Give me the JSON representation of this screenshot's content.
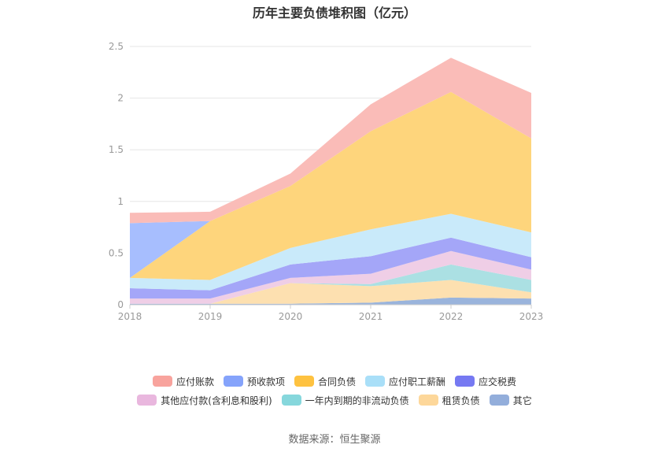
{
  "chart_data": {
    "type": "area",
    "title": "历年主要负债堆积图（亿元）",
    "x": [
      "2018",
      "2019",
      "2020",
      "2021",
      "2022",
      "2023"
    ],
    "ylim": [
      0,
      2.5
    ],
    "yticks": [
      "0",
      "0.5",
      "1",
      "1.5",
      "2",
      "2.5"
    ],
    "grid": true,
    "legend_position": "bottom",
    "stacked": true,
    "series": [
      {
        "name": "其它",
        "color": "#9ab4dc",
        "values": [
          0.01,
          0.01,
          0.01,
          0.02,
          0.07,
          0.06
        ]
      },
      {
        "name": "租赁负债",
        "color": "#fde0b0",
        "values": [
          0,
          0,
          0.2,
          0.16,
          0.17,
          0.06
        ]
      },
      {
        "name": "一年内到期的非流动负债",
        "color": "#abe0e3",
        "values": [
          0,
          0,
          0,
          0.02,
          0.15,
          0.12
        ]
      },
      {
        "name": "其他应付款(含利息和股利)",
        "color": "#efcee6",
        "values": [
          0.05,
          0.05,
          0.05,
          0.1,
          0.13,
          0.1
        ]
      },
      {
        "name": "应交税费",
        "color": "#a4a6f8",
        "values": [
          0.1,
          0.08,
          0.13,
          0.17,
          0.13,
          0.12
        ]
      },
      {
        "name": "应付职工薪酬",
        "color": "#c9eafa",
        "values": [
          0.1,
          0.1,
          0.16,
          0.26,
          0.23,
          0.24
        ]
      },
      {
        "name": "合同负债",
        "color": "#fed57c",
        "values": [
          0,
          0.57,
          0.6,
          0.95,
          1.18,
          0.91
        ]
      },
      {
        "name": "预收款项",
        "color": "#a7befe",
        "values": [
          0.53,
          0,
          0,
          0,
          0,
          0
        ]
      },
      {
        "name": "应付账款",
        "color": "#fabcb8",
        "values": [
          0.1,
          0.09,
          0.12,
          0.26,
          0.33,
          0.44
        ]
      }
    ]
  },
  "legend": {
    "row1": [
      {
        "label": "应付账款",
        "color": "#f8a39d"
      },
      {
        "label": "预收款项",
        "color": "#85a3fb"
      },
      {
        "label": "合同负债",
        "color": "#fec240"
      },
      {
        "label": "应付职工薪酬",
        "color": "#a9dff8"
      },
      {
        "label": "应交税费",
        "color": "#7679f2"
      }
    ],
    "row2": [
      {
        "label": "其他应付款(含利息和股利)",
        "color": "#e9b7de"
      },
      {
        "label": "一年内到期的非流动负债",
        "color": "#86d7dc"
      },
      {
        "label": "租赁负债",
        "color": "#fdd79a"
      },
      {
        "label": "其它",
        "color": "#93aedb"
      }
    ]
  },
  "source": "数据来源：恒生聚源"
}
